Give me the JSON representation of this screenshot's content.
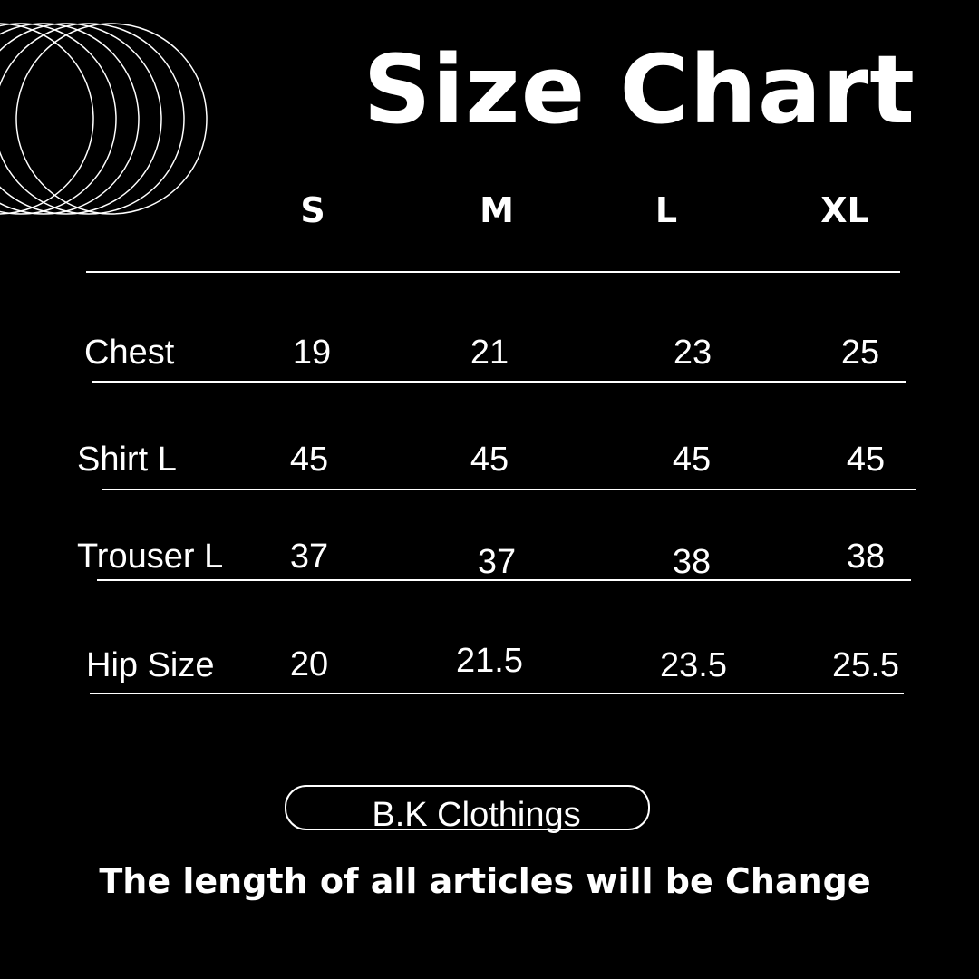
{
  "title": "Size Chart",
  "sizes": [
    "S",
    "M",
    "L",
    "XL"
  ],
  "rows": [
    {
      "label": "Chest",
      "values": [
        "19",
        "21",
        "23",
        "25"
      ]
    },
    {
      "label": "Shirt L",
      "values": [
        "45",
        "45",
        "45",
        "45"
      ]
    },
    {
      "label": "Trouser L",
      "values": [
        "37",
        "37",
        "38",
        "38"
      ]
    },
    {
      "label": "Hip Size",
      "values": [
        "20",
        "21.5",
        "23.5",
        "25.5"
      ]
    }
  ],
  "brand": "B.K Clothings",
  "footer": "The length of all articles will be Change",
  "colors": {
    "background": "#000000",
    "foreground": "#ffffff"
  }
}
